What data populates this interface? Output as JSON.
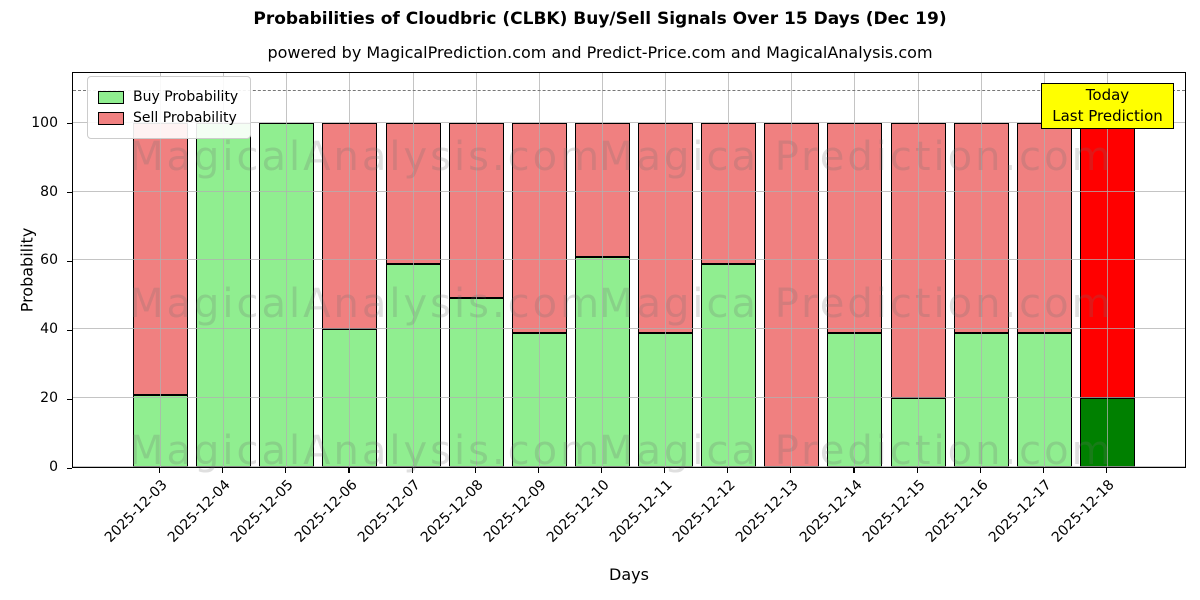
{
  "title": "Probabilities of Cloudbric (CLBK) Buy/Sell Signals Over 15 Days (Dec 19)",
  "subtitle": "powered by MagicalPrediction.com and Predict-Price.com and MagicalAnalysis.com",
  "axes": {
    "ylabel": "Probability",
    "xlabel": "Days",
    "yticks": [
      0,
      20,
      40,
      60,
      80,
      100
    ],
    "ylim": [
      0,
      115
    ],
    "dashed_line_y": 110,
    "grid": "on"
  },
  "legend": {
    "position": "upper-left",
    "items": [
      {
        "label": "Buy Probability",
        "color": "#90EE90"
      },
      {
        "label": "Sell Probability",
        "color": "#F08080"
      }
    ]
  },
  "annotation": {
    "line1": "Today",
    "line2": "Last Prediction",
    "bg_color": "#ffff00"
  },
  "watermarks": {
    "left_text": "MagicalAnalysis.com",
    "right_text": "Magica Prediction.com"
  },
  "chart_data": {
    "type": "bar",
    "stacked": true,
    "title": "Probabilities of Cloudbric (CLBK) Buy/Sell Signals Over 15 Days (Dec 19)",
    "xlabel": "Days",
    "ylabel": "Probability",
    "ylim": [
      0,
      115
    ],
    "categories": [
      "2025-12-03",
      "2025-12-04",
      "2025-12-05",
      "2025-12-06",
      "2025-12-07",
      "2025-12-08",
      "2025-12-09",
      "2025-12-10",
      "2025-12-11",
      "2025-12-12",
      "2025-12-13",
      "2025-12-14",
      "2025-12-15",
      "2025-12-16",
      "2025-12-17",
      "2025-12-18"
    ],
    "series": [
      {
        "name": "Buy Probability",
        "values": [
          21,
          100,
          100,
          40,
          59,
          49,
          39,
          61,
          39,
          59,
          0,
          39,
          20,
          39,
          39,
          20
        ]
      },
      {
        "name": "Sell Probability",
        "values": [
          79,
          0,
          0,
          60,
          41,
          51,
          61,
          39,
          61,
          41,
          100,
          61,
          80,
          61,
          61,
          80
        ]
      }
    ],
    "colors": {
      "buy": "#90EE90",
      "sell": "#F08080",
      "today_buy": "#008000",
      "today_sell": "#FF0000"
    },
    "today_index": 15,
    "legend_position": "upper left",
    "grid": true
  }
}
